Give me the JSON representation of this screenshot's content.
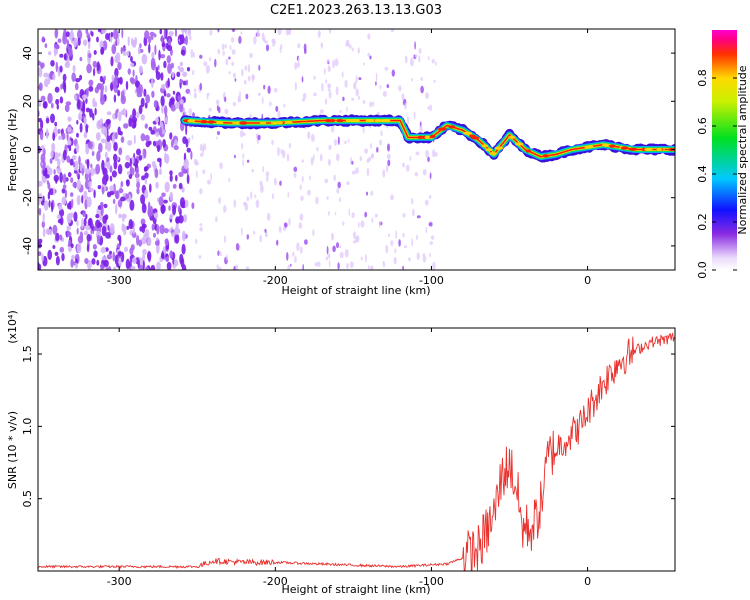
{
  "title": "C2E1.2023.263.13.13.G03",
  "chart_data": [
    {
      "type": "heatmap",
      "xlabel": "Height of straight line (km)",
      "ylabel": "Frequency (Hz)",
      "xlim": [
        -352,
        56
      ],
      "ylim": [
        -50,
        50
      ],
      "xticks": [
        -300,
        -200,
        -100,
        0
      ],
      "yticks": [
        40,
        20,
        0,
        -20,
        -40
      ],
      "xtick_labels": [
        "-300",
        "-200",
        "-100",
        "0"
      ],
      "ytick_labels": [
        "40",
        "20",
        "0",
        "-20",
        "-40"
      ],
      "colorbar": {
        "label": "Normalized spectral amplitude",
        "range": [
          0,
          1
        ],
        "ticks": [
          0.0,
          0.2,
          0.4,
          0.6,
          0.8
        ],
        "tick_labels": [
          "0.0",
          "0.2",
          "0.4",
          "0.6",
          "0.8"
        ],
        "colormap": "rainbow"
      },
      "noise_region_x": [
        -352,
        -255
      ],
      "sparse_noise_region_x": [
        -255,
        -97
      ],
      "signal_track": {
        "x": [
          -258,
          -230,
          -200,
          -170,
          -140,
          -120,
          -115,
          -100,
          -90,
          -80,
          -70,
          -60,
          -50,
          -40,
          -30,
          -20,
          -10,
          0,
          10,
          20,
          30,
          40,
          56
        ],
        "y": [
          12,
          11,
          11,
          12,
          12,
          12,
          5,
          5,
          10,
          8,
          4,
          -2,
          6,
          0,
          -3,
          -2,
          0,
          1,
          2,
          1,
          0,
          0,
          0
        ]
      }
    },
    {
      "type": "line",
      "xlabel": "Height of straight line (km)",
      "ylabel": "SNR (10 * v/v)",
      "scale_label": "(x10⁴)",
      "xlim": [
        -352,
        56
      ],
      "ylim": [
        0,
        1.68
      ],
      "xticks": [
        -300,
        -200,
        -100,
        0
      ],
      "yticks": [
        0.5,
        1.0,
        1.5
      ],
      "xtick_labels": [
        "-300",
        "-200",
        "-100",
        "0"
      ],
      "ytick_labels": [
        "0.5",
        "1.0",
        "1.5"
      ],
      "color": "#e8312d",
      "series": [
        {
          "x": [
            -352,
            -300,
            -250,
            -240,
            -220,
            -200,
            -150,
            -120,
            -90,
            -80,
            -70,
            -60,
            -55,
            -50,
            -45,
            -42,
            -40,
            -35,
            -30,
            -25,
            -20,
            -15,
            -10,
            -5,
            0,
            10,
            20,
            30,
            40,
            50,
            56
          ],
          "y": [
            0.03,
            0.03,
            0.03,
            0.07,
            0.06,
            0.06,
            0.04,
            0.03,
            0.05,
            0.09,
            0.15,
            0.38,
            0.65,
            0.75,
            0.55,
            0.3,
            0.3,
            0.3,
            0.45,
            0.8,
            0.85,
            0.9,
            0.95,
            1.0,
            1.1,
            1.3,
            1.45,
            1.52,
            1.58,
            1.6,
            1.62
          ]
        }
      ]
    }
  ]
}
